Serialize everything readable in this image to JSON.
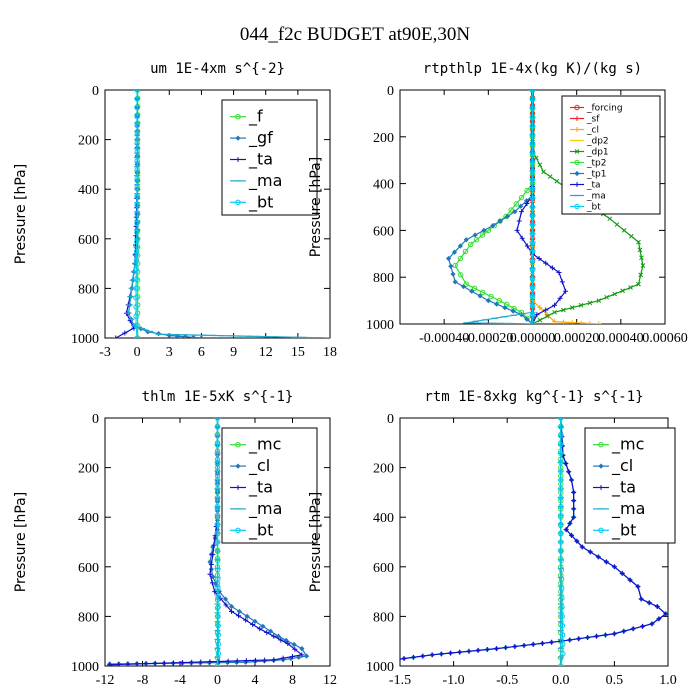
{
  "figure": {
    "title": "044_f2c  BUDGET at90E,30N"
  },
  "chart_data": [
    {
      "type": "line",
      "title": "um  1E-4xm s^{-2}",
      "ylabel": "Pressure [hPa]",
      "xlim": [
        -3,
        18
      ],
      "ylim": [
        1000,
        0
      ],
      "xticks": [
        -3,
        0,
        3,
        6,
        9,
        12,
        15,
        18
      ],
      "xtick_labels": [
        "-3",
        "0",
        "3",
        "6",
        "9",
        "12",
        "15",
        "18"
      ],
      "yticks": [
        0,
        200,
        400,
        600,
        800,
        1000
      ],
      "ytick_labels": [
        "0",
        "200",
        "400",
        "600",
        "800",
        "1000"
      ],
      "legend_style": "big",
      "legend": [
        "_f",
        "_gf",
        "_ta",
        "_ma",
        "_bt"
      ],
      "series": [
        {
          "name": "_f",
          "color": "#33dd33",
          "marker": "circle",
          "x": [
            0.05,
            0.05,
            0.05,
            0.05,
            0.05,
            0.05,
            0.05,
            0.05,
            0.05,
            0.05,
            0.05,
            0.05
          ],
          "y": [
            0,
            100,
            200,
            300,
            400,
            500,
            600,
            700,
            800,
            900,
            950,
            1000
          ]
        },
        {
          "name": "_gf",
          "color": "#2277bb",
          "marker": "diamond",
          "x": [
            0,
            0,
            0,
            0,
            -0.2,
            -0.5,
            -0.8,
            -0.3,
            1.0,
            3.0,
            6.0
          ],
          "y": [
            0,
            200,
            400,
            600,
            700,
            800,
            900,
            950,
            975,
            990,
            1000
          ]
        },
        {
          "name": "_ta",
          "color": "#1111cc",
          "marker": "plus",
          "x": [
            0,
            0,
            -0.2,
            -0.5,
            -1.0,
            -0.3,
            -2.0
          ],
          "y": [
            0,
            400,
            700,
            800,
            900,
            960,
            1000
          ]
        },
        {
          "name": "_ma",
          "color": "#22aacc",
          "marker": "dash",
          "x": [
            0,
            0,
            0,
            -0.2,
            -0.5,
            -0.8,
            -0.3,
            2.0,
            18.0
          ],
          "y": [
            0,
            200,
            600,
            700,
            800,
            900,
            950,
            985,
            1000
          ]
        },
        {
          "name": "_bt",
          "color": "#00ccee",
          "marker": "circle",
          "x": [
            0,
            0,
            -0.1,
            -0.1,
            0
          ],
          "y": [
            0,
            500,
            800,
            950,
            1000
          ]
        }
      ]
    },
    {
      "type": "line",
      "title": "rtpthlp  1E-4x(kg K)/(kg s)",
      "ylabel": "Pressure [hPa]",
      "xlim": [
        -0.0006,
        0.0006
      ],
      "ylim": [
        1000,
        0
      ],
      "xticks": [
        -0.0004,
        -0.0002,
        0,
        0.0002,
        0.0004,
        0.0006
      ],
      "xtick_labels": [
        "-0.00040",
        "-0.00020",
        "0.00000",
        "0.00020",
        "0.00040",
        "0.00060"
      ],
      "yticks": [
        0,
        200,
        400,
        600,
        800,
        1000
      ],
      "ytick_labels": [
        "0",
        "200",
        "400",
        "600",
        "800",
        "1000"
      ],
      "legend_style": "small",
      "legend": [
        "_forcing",
        "_sf",
        "_cl",
        "_dp2",
        "_dp1",
        "_tp2",
        "_tp1",
        "_ta",
        "_ma",
        "_bt"
      ],
      "series": [
        {
          "name": "_forcing",
          "color": "#ee2222",
          "marker": "circle",
          "x": [
            0,
            0,
            0,
            0,
            0,
            0,
            0,
            0,
            0,
            0,
            0
          ],
          "y": [
            0,
            100,
            200,
            300,
            400,
            500,
            600,
            700,
            800,
            900,
            1000
          ]
        },
        {
          "name": "_sf",
          "color": "#ee2222",
          "marker": "plus",
          "x": [
            0,
            0,
            0,
            0,
            0,
            0
          ],
          "y": [
            0,
            200,
            400,
            600,
            800,
            1000
          ]
        },
        {
          "name": "_cl",
          "color": "#ffaa00",
          "marker": "plus",
          "x": [
            0,
            0,
            0,
            0.0001,
            0.0003
          ],
          "y": [
            0,
            400,
            900,
            990,
            1000
          ]
        },
        {
          "name": "_dp2",
          "color": "#ffcc00",
          "marker": "dash",
          "x": [
            0,
            0,
            0
          ],
          "y": [
            0,
            500,
            1000
          ]
        },
        {
          "name": "_dp1",
          "color": "#119911",
          "marker": "cross",
          "x": [
            0,
            0,
            5e-05,
            0.0002,
            0.00035,
            0.00048,
            0.0005,
            0.00048,
            0.0003,
            0.0001,
            0
          ],
          "y": [
            0,
            260,
            350,
            450,
            550,
            650,
            750,
            830,
            900,
            950,
            1000
          ]
        },
        {
          "name": "_tp2",
          "color": "#33dd33",
          "marker": "circle",
          "x": [
            0,
            0,
            -5e-05,
            -0.00012,
            -0.0002,
            -0.00028,
            -0.00035,
            -0.0003,
            -0.00015,
            -5e-05,
            0
          ],
          "y": [
            0,
            400,
            460,
            540,
            600,
            660,
            750,
            830,
            900,
            950,
            1000
          ]
        },
        {
          "name": "_tp1",
          "color": "#2277bb",
          "marker": "diamond",
          "x": [
            0,
            0,
            -8e-05,
            -0.00018,
            -0.0003,
            -0.00038,
            -0.00035,
            -0.0002,
            -5e-05,
            0
          ],
          "y": [
            0,
            450,
            520,
            580,
            640,
            720,
            820,
            900,
            960,
            1000
          ]
        },
        {
          "name": "_ta",
          "color": "#1111cc",
          "marker": "plus",
          "x": [
            0,
            0,
            -5e-05,
            -7e-05,
            0,
            0.00012,
            0.00015,
            0.0001,
            2e-05,
            0
          ],
          "y": [
            0,
            450,
            520,
            600,
            700,
            780,
            860,
            920,
            960,
            1000
          ]
        },
        {
          "name": "_ma",
          "color": "#22aacc",
          "marker": "dash",
          "x": [
            0,
            0,
            0,
            -0.0003,
            -0.0001,
            0
          ],
          "y": [
            0,
            500,
            950,
            995,
            998,
            1000
          ]
        },
        {
          "name": "_bt",
          "color": "#00ccee",
          "marker": "circle",
          "x": [
            0,
            0,
            0
          ],
          "y": [
            0,
            500,
            1000
          ]
        }
      ]
    },
    {
      "type": "line",
      "title": "thlm  1E-5xK s^{-1}",
      "ylabel": "Pressure [hPa]",
      "xlim": [
        -12,
        12
      ],
      "ylim": [
        1000,
        0
      ],
      "xticks": [
        -12,
        -8,
        -4,
        0,
        4,
        8,
        12
      ],
      "xtick_labels": [
        "-12",
        "-8",
        "-4",
        "0",
        "4",
        "8",
        "12"
      ],
      "yticks": [
        0,
        200,
        400,
        600,
        800,
        1000
      ],
      "ytick_labels": [
        "0",
        "200",
        "400",
        "600",
        "800",
        "1000"
      ],
      "legend_style": "big",
      "legend": [
        "_mc",
        "_cl",
        "_ta",
        "_ma",
        "_bt"
      ],
      "series": [
        {
          "name": "_mc",
          "color": "#33dd33",
          "marker": "circle",
          "x": [
            0,
            0,
            0,
            0,
            0,
            0,
            0,
            0,
            0,
            0,
            0
          ],
          "y": [
            0,
            100,
            200,
            300,
            400,
            500,
            600,
            700,
            800,
            900,
            1000
          ]
        },
        {
          "name": "_cl",
          "color": "#2277bb",
          "marker": "diamond",
          "x": [
            0,
            0,
            0,
            -0.5,
            -0.8,
            -0.5,
            0.2,
            1.5,
            4.0,
            6.5,
            9.0,
            9.5,
            7.0,
            3.0,
            -11.5
          ],
          "y": [
            0,
            300,
            450,
            520,
            580,
            640,
            700,
            760,
            820,
            880,
            930,
            960,
            975,
            985,
            992
          ]
        },
        {
          "name": "_ta",
          "color": "#1111cc",
          "marker": "plus",
          "x": [
            0,
            0,
            -0.5,
            -0.8,
            -0.3,
            1.5,
            4.5,
            7.5,
            9.0,
            6.0,
            -11.5
          ],
          "y": [
            0,
            400,
            550,
            630,
            700,
            780,
            850,
            910,
            955,
            975,
            995
          ]
        },
        {
          "name": "_ma",
          "color": "#22aacc",
          "marker": "dash",
          "x": [
            0,
            0,
            0
          ],
          "y": [
            0,
            500,
            1000
          ]
        },
        {
          "name": "_bt",
          "color": "#00ccee",
          "marker": "circle",
          "x": [
            0,
            0,
            0.1,
            0
          ],
          "y": [
            0,
            500,
            950,
            1000
          ]
        }
      ]
    },
    {
      "type": "line",
      "title": "rtm  1E-8xkg kg^{-1} s^{-1}",
      "ylabel": "Pressure [hPa]",
      "xlim": [
        -1.5,
        1.0
      ],
      "ylim": [
        1000,
        0
      ],
      "xticks": [
        -1.5,
        -1.0,
        -0.5,
        0.0,
        0.5,
        1.0
      ],
      "xtick_labels": [
        "-1.5",
        "-1.0",
        "-0.5",
        "0.0",
        "0.5",
        "1.0"
      ],
      "yticks": [
        0,
        200,
        400,
        600,
        800,
        1000
      ],
      "ytick_labels": [
        "0",
        "200",
        "400",
        "600",
        "800",
        "1000"
      ],
      "legend_style": "big",
      "legend": [
        "_mc",
        "_cl",
        "_ta",
        "_ma",
        "_bt"
      ],
      "series": [
        {
          "name": "_mc",
          "color": "#33dd33",
          "marker": "circle",
          "x": [
            0,
            0,
            0,
            0,
            0,
            0,
            0,
            0,
            0,
            0,
            0
          ],
          "y": [
            0,
            100,
            200,
            300,
            400,
            500,
            600,
            700,
            800,
            900,
            1000
          ]
        },
        {
          "name": "_cl",
          "color": "#2277bb",
          "marker": "diamond",
          "x": [
            0,
            0.02,
            0.1,
            0.12,
            0.12,
            0.05,
            0.2,
            0.5,
            0.72,
            0.75,
            0.9,
            0.98,
            0.85,
            0.5,
            0.0,
            -0.6,
            -1.2,
            -1.55
          ],
          "y": [
            0,
            150,
            250,
            300,
            400,
            450,
            520,
            600,
            680,
            730,
            760,
            790,
            830,
            870,
            900,
            930,
            955,
            975
          ]
        },
        {
          "name": "_ta",
          "color": "#1111cc",
          "marker": "plus",
          "x": [
            0,
            0.02,
            0.1,
            0.12,
            0.12,
            0.05,
            0.2,
            0.5,
            0.72,
            0.75,
            0.9,
            0.98,
            0.85,
            0.5,
            0.0,
            -0.6,
            -1.2,
            -1.55
          ],
          "y": [
            0,
            150,
            250,
            300,
            400,
            450,
            520,
            600,
            680,
            730,
            760,
            790,
            830,
            870,
            900,
            930,
            955,
            975
          ]
        },
        {
          "name": "_ma",
          "color": "#22aacc",
          "marker": "dash",
          "x": [
            0,
            0,
            0
          ],
          "y": [
            0,
            500,
            1000
          ]
        },
        {
          "name": "_bt",
          "color": "#00ccee",
          "marker": "circle",
          "x": [
            0,
            0,
            0.02,
            0
          ],
          "y": [
            0,
            500,
            950,
            1000
          ]
        }
      ]
    }
  ]
}
